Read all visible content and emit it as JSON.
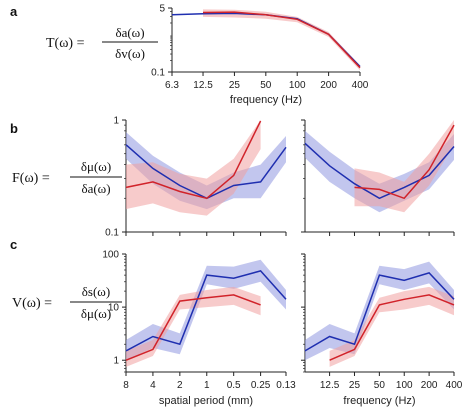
{
  "colors": {
    "blue": "#1f2fb0",
    "red": "#d1232a",
    "blue_band": "#8f98e0",
    "red_band": "#f0a0a0",
    "axis": "#222222"
  },
  "panels": {
    "a": {
      "letter": "a",
      "eq_lhs": "T(ω) =",
      "eq_num": "δa(ω)",
      "eq_den": "δv(ω)"
    },
    "b": {
      "letter": "b",
      "eq_lhs": "F(ω) =",
      "eq_num": "δμ(ω)",
      "eq_den": "δa(ω)"
    },
    "c": {
      "letter": "c",
      "eq_lhs": "V(ω) =",
      "eq_num": "δs(ω)",
      "eq_den": "δμ(ω)"
    }
  },
  "chart_data": [
    {
      "id": "a",
      "type": "line",
      "xlabel": "frequency (Hz)",
      "ylabel": "",
      "xscale": "log",
      "yscale": "log",
      "xlim": [
        6.3,
        400
      ],
      "ylim": [
        0.1,
        5
      ],
      "xticks": [
        6.3,
        12.5,
        25,
        50,
        100,
        200,
        400
      ],
      "xtick_labels": [
        "6.3",
        "12.5",
        "25",
        "50",
        "100",
        "200",
        "400"
      ],
      "yticks": [
        0.1,
        5
      ],
      "ytick_labels": [
        "0.1",
        "5"
      ],
      "series": [
        {
          "color": "blue",
          "x": [
            6.3,
            12.5,
            25,
            50,
            100,
            200,
            400
          ],
          "y": [
            3.3,
            3.5,
            3.6,
            3.3,
            2.6,
            1.0,
            0.14
          ],
          "lower": [
            3.3,
            3.5,
            3.6,
            3.3,
            2.6,
            1.0,
            0.14
          ],
          "upper": [
            3.3,
            3.5,
            3.6,
            3.3,
            2.6,
            1.0,
            0.14
          ]
        },
        {
          "color": "red",
          "x": [
            12.5,
            25,
            50,
            100,
            200,
            400
          ],
          "y": [
            3.8,
            3.9,
            3.3,
            2.5,
            1.0,
            0.13
          ],
          "lower": [
            2.9,
            2.8,
            2.6,
            2.1,
            0.85,
            0.11
          ],
          "upper": [
            4.6,
            4.5,
            4.0,
            2.9,
            1.15,
            0.15
          ]
        }
      ]
    },
    {
      "id": "b_left",
      "type": "line",
      "xlabel": "",
      "ylabel": "",
      "xscale": "log_reversed",
      "yscale": "log",
      "xlim": [
        8,
        0.13
      ],
      "ylim": [
        0.1,
        1
      ],
      "xticks": [
        8,
        4,
        2,
        1,
        0.5,
        0.25,
        0.13
      ],
      "xtick_labels": [],
      "yticks": [
        0.1,
        1
      ],
      "ytick_labels": [
        "0.1",
        "1"
      ],
      "series": [
        {
          "color": "blue",
          "x": [
            8,
            4,
            2,
            1,
            0.5,
            0.25,
            0.13
          ],
          "y": [
            0.6,
            0.37,
            0.26,
            0.2,
            0.26,
            0.28,
            0.57
          ],
          "lower": [
            0.45,
            0.27,
            0.19,
            0.16,
            0.2,
            0.2,
            0.42
          ],
          "upper": [
            0.78,
            0.48,
            0.34,
            0.26,
            0.34,
            0.4,
            0.72
          ]
        },
        {
          "color": "red",
          "x": [
            8,
            4,
            2,
            1,
            0.5,
            0.25
          ],
          "y": [
            0.25,
            0.28,
            0.23,
            0.2,
            0.32,
            0.98
          ],
          "lower": [
            0.16,
            0.18,
            0.15,
            0.14,
            0.22,
            0.55
          ],
          "upper": [
            0.4,
            0.42,
            0.33,
            0.3,
            0.45,
            1.0
          ]
        }
      ]
    },
    {
      "id": "b_right",
      "type": "line",
      "xlabel": "",
      "ylabel": "",
      "xscale": "log",
      "yscale": "log",
      "xlim": [
        6.3,
        400
      ],
      "ylim": [
        0.1,
        1
      ],
      "xticks": [
        12.5,
        25,
        50,
        100,
        200,
        400
      ],
      "xtick_labels": [],
      "yticks": [
        0.1,
        1
      ],
      "ytick_labels": [],
      "series": [
        {
          "color": "blue",
          "x": [
            6.3,
            12.5,
            25,
            50,
            100,
            200,
            400
          ],
          "y": [
            0.62,
            0.39,
            0.27,
            0.2,
            0.25,
            0.32,
            0.58
          ],
          "lower": [
            0.46,
            0.28,
            0.2,
            0.15,
            0.19,
            0.24,
            0.44
          ],
          "upper": [
            0.8,
            0.52,
            0.36,
            0.27,
            0.33,
            0.42,
            0.75
          ]
        },
        {
          "color": "red",
          "x": [
            25,
            50,
            100,
            200,
            400
          ],
          "y": [
            0.25,
            0.24,
            0.2,
            0.36,
            0.9
          ],
          "lower": [
            0.17,
            0.17,
            0.15,
            0.26,
            0.6
          ],
          "upper": [
            0.37,
            0.34,
            0.28,
            0.5,
            1.0
          ]
        }
      ]
    },
    {
      "id": "c_left",
      "type": "line",
      "xlabel": "spatial period (mm)",
      "ylabel": "",
      "xscale": "log_reversed",
      "yscale": "log",
      "xlim": [
        8,
        0.13
      ],
      "ylim": [
        0.6,
        100
      ],
      "xticks": [
        8,
        4,
        2,
        1,
        0.5,
        0.25,
        0.13
      ],
      "xtick_labels": [
        "8",
        "4",
        "2",
        "1",
        "0.5",
        "0.25",
        "0.13"
      ],
      "yticks": [
        1,
        10,
        100
      ],
      "ytick_labels": [
        "1",
        "10",
        "100"
      ],
      "series": [
        {
          "color": "blue",
          "x": [
            8,
            4,
            2,
            1,
            0.5,
            0.25,
            0.13
          ],
          "y": [
            1.5,
            2.8,
            2.0,
            40,
            35,
            48,
            14
          ],
          "lower": [
            1.0,
            1.7,
            1.3,
            27,
            22,
            30,
            9
          ],
          "upper": [
            2.4,
            4.8,
            3.2,
            60,
            58,
            78,
            21
          ]
        },
        {
          "color": "red",
          "x": [
            8,
            4,
            2,
            1,
            0.5,
            0.25
          ],
          "y": [
            1.0,
            1.6,
            13,
            15,
            17,
            11
          ],
          "lower": [
            0.75,
            1.2,
            9,
            10,
            11,
            7
          ],
          "upper": [
            1.5,
            2.4,
            17,
            21,
            24,
            16
          ]
        }
      ]
    },
    {
      "id": "c_right",
      "type": "line",
      "xlabel": "frequency (Hz)",
      "ylabel": "",
      "xscale": "log",
      "yscale": "log",
      "xlim": [
        6.3,
        400
      ],
      "ylim": [
        0.6,
        100
      ],
      "xticks": [
        12.5,
        25,
        50,
        100,
        200,
        400
      ],
      "xtick_labels": [
        "12.5",
        "25",
        "50",
        "100",
        "200",
        "400"
      ],
      "yticks": [
        1,
        10,
        100
      ],
      "ytick_labels": [],
      "series": [
        {
          "color": "blue",
          "x": [
            6.3,
            12.5,
            25,
            50,
            100,
            200,
            400
          ],
          "y": [
            1.5,
            2.8,
            2.0,
            40,
            32,
            44,
            14
          ],
          "lower": [
            1.0,
            1.7,
            1.3,
            27,
            21,
            28,
            9
          ],
          "upper": [
            2.4,
            4.8,
            3.2,
            60,
            52,
            72,
            21
          ]
        },
        {
          "color": "red",
          "x": [
            12.5,
            25,
            50,
            100,
            200,
            400
          ],
          "y": [
            1.0,
            1.6,
            11,
            14,
            17,
            11
          ],
          "lower": [
            0.75,
            1.2,
            8,
            9,
            11,
            7
          ],
          "upper": [
            1.5,
            2.4,
            15,
            20,
            24,
            16
          ]
        }
      ]
    }
  ]
}
